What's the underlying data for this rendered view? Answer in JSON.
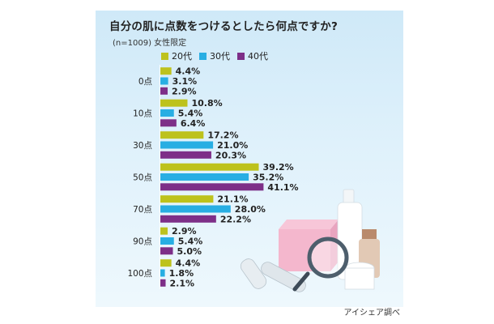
{
  "chart_data": {
    "type": "bar",
    "orientation": "horizontal",
    "title": "自分の肌に点数をつけるとしたら何点ですか?",
    "subtitle": "(n=1009) 女性限定",
    "categories": [
      "0点",
      "10点",
      "30点",
      "50点",
      "70点",
      "90点",
      "100点"
    ],
    "series": [
      {
        "name": "20代",
        "color": "#bdc21d",
        "values": [
          4.4,
          10.8,
          17.2,
          39.2,
          21.1,
          2.9,
          4.4
        ],
        "labels": [
          "4.4%",
          "10.8%",
          "17.2%",
          "39.2%",
          "21.1%",
          "2.9%",
          "4.4%"
        ]
      },
      {
        "name": "30代",
        "color": "#28aee3",
        "values": [
          3.1,
          5.4,
          21.0,
          35.2,
          28.0,
          5.4,
          1.8
        ],
        "labels": [
          "3.1%",
          "5.4%",
          "21.0%",
          "35.2%",
          "28.0%",
          "5.4%",
          "1.8%"
        ]
      },
      {
        "name": "40代",
        "color": "#7d2f88",
        "values": [
          2.9,
          6.4,
          20.3,
          41.1,
          22.2,
          5.0,
          2.1
        ],
        "labels": [
          "2.9%",
          "6.4%",
          "20.3%",
          "41.1%",
          "22.2%",
          "5.0%",
          "2.1%"
        ]
      }
    ],
    "xlim": [
      0,
      50
    ],
    "legend_position": "top-left",
    "source": "アイシェア調べ"
  }
}
